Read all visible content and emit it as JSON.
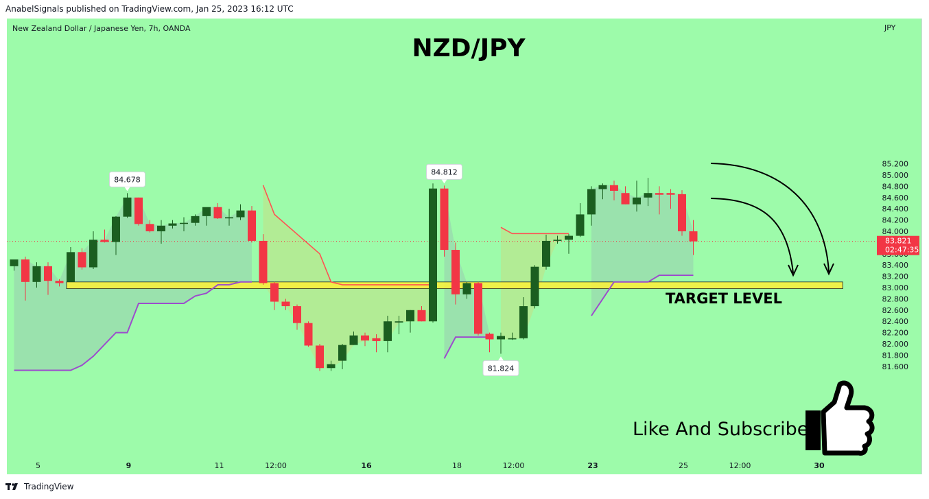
{
  "header": {
    "published": "AnabelSignals published on TradingView.com, Jan 25, 2023 16:12 UTC"
  },
  "symbol": {
    "description": "New Zealand Dollar / Japanese Yen, 7h, OANDA",
    "currency": "JPY"
  },
  "footer": {
    "brand": "TradingView",
    "logo_icon": "tradingview-logo-icon"
  },
  "colors": {
    "background": "#9dfbaa",
    "up": "#1b5e20",
    "down": "#f23645",
    "target_zone": "#f9ef3b",
    "support_line": "#9c4dcc",
    "resistance_line": "#ff5252"
  },
  "chart_data": {
    "type": "candlestick",
    "title": "NZD/JPY",
    "ylim": [
      81.5,
      85.3
    ],
    "y_ticks": [
      "85.200",
      "85.000",
      "84.800",
      "84.600",
      "84.400",
      "84.200",
      "84.000",
      "83.800",
      "83.600",
      "83.400",
      "83.200",
      "83.000",
      "82.800",
      "82.600",
      "82.400",
      "82.200",
      "82.000",
      "81.800",
      "81.600"
    ],
    "x_ticks": [
      {
        "label": "5",
        "bar": 2.0,
        "bold": false
      },
      {
        "label": "9",
        "bar": 10.0,
        "bold": true
      },
      {
        "label": "11",
        "bar": 18.0,
        "bold": false
      },
      {
        "label": "12:00",
        "bar": 23.0,
        "bold": false
      },
      {
        "label": "16",
        "bar": 31.0,
        "bold": true
      },
      {
        "label": "18",
        "bar": 39.0,
        "bold": false
      },
      {
        "label": "12:00",
        "bar": 44.0,
        "bold": false
      },
      {
        "label": "23",
        "bar": 51.0,
        "bold": true
      },
      {
        "label": "25",
        "bar": 59.0,
        "bold": false
      },
      {
        "label": "12:00",
        "bar": 64.0,
        "bold": false
      },
      {
        "label": "30",
        "bar": 71.0,
        "bold": true
      }
    ],
    "candles": [
      {
        "o": 83.38,
        "h": 83.5,
        "l": 83.3,
        "c": 83.5
      },
      {
        "o": 83.5,
        "h": 83.55,
        "l": 82.77,
        "c": 83.1
      },
      {
        "o": 83.1,
        "h": 83.45,
        "l": 83.0,
        "c": 83.38
      },
      {
        "o": 83.38,
        "h": 83.45,
        "l": 82.87,
        "c": 83.12
      },
      {
        "o": 83.12,
        "h": 83.15,
        "l": 83.02,
        "c": 83.08
      },
      {
        "o": 83.1,
        "h": 83.72,
        "l": 83.1,
        "c": 83.63
      },
      {
        "o": 83.63,
        "h": 83.7,
        "l": 83.32,
        "c": 83.36
      },
      {
        "o": 83.36,
        "h": 84.0,
        "l": 83.33,
        "c": 83.85
      },
      {
        "o": 83.85,
        "h": 84.03,
        "l": 83.8,
        "c": 83.81
      },
      {
        "o": 83.81,
        "h": 84.27,
        "l": 83.58,
        "c": 84.26
      },
      {
        "o": 84.26,
        "h": 84.678,
        "l": 84.24,
        "c": 84.6
      },
      {
        "o": 84.6,
        "h": 84.6,
        "l": 84.1,
        "c": 84.13
      },
      {
        "o": 84.13,
        "h": 84.2,
        "l": 83.98,
        "c": 84.0
      },
      {
        "o": 84.0,
        "h": 84.2,
        "l": 83.78,
        "c": 84.1
      },
      {
        "o": 84.1,
        "h": 84.2,
        "l": 84.05,
        "c": 84.14
      },
      {
        "o": 84.14,
        "h": 84.25,
        "l": 84.0,
        "c": 84.15
      },
      {
        "o": 84.15,
        "h": 84.3,
        "l": 84.1,
        "c": 84.27
      },
      {
        "o": 84.27,
        "h": 84.42,
        "l": 84.1,
        "c": 84.43
      },
      {
        "o": 84.43,
        "h": 84.5,
        "l": 84.22,
        "c": 84.23
      },
      {
        "o": 84.23,
        "h": 84.4,
        "l": 84.1,
        "c": 84.25
      },
      {
        "o": 84.25,
        "h": 84.48,
        "l": 84.2,
        "c": 84.37
      },
      {
        "o": 84.37,
        "h": 84.45,
        "l": 83.8,
        "c": 83.83
      },
      {
        "o": 83.83,
        "h": 83.95,
        "l": 83.05,
        "c": 83.08
      },
      {
        "o": 83.08,
        "h": 83.1,
        "l": 82.6,
        "c": 82.75
      },
      {
        "o": 82.75,
        "h": 82.8,
        "l": 82.6,
        "c": 82.67
      },
      {
        "o": 82.67,
        "h": 82.7,
        "l": 82.25,
        "c": 82.37
      },
      {
        "o": 82.37,
        "h": 82.4,
        "l": 81.95,
        "c": 81.97
      },
      {
        "o": 81.97,
        "h": 82.0,
        "l": 81.52,
        "c": 81.57
      },
      {
        "o": 81.57,
        "h": 81.7,
        "l": 81.52,
        "c": 81.64
      },
      {
        "o": 81.7,
        "h": 82.0,
        "l": 81.55,
        "c": 81.98
      },
      {
        "o": 81.98,
        "h": 82.22,
        "l": 81.98,
        "c": 82.15
      },
      {
        "o": 82.15,
        "h": 82.2,
        "l": 81.96,
        "c": 82.06
      },
      {
        "o": 82.1,
        "h": 82.17,
        "l": 81.85,
        "c": 82.05
      },
      {
        "o": 82.05,
        "h": 82.5,
        "l": 81.85,
        "c": 82.4
      },
      {
        "o": 82.38,
        "h": 82.5,
        "l": 82.17,
        "c": 82.4
      },
      {
        "o": 82.4,
        "h": 82.6,
        "l": 82.2,
        "c": 82.6
      },
      {
        "o": 82.6,
        "h": 82.67,
        "l": 82.4,
        "c": 82.4
      },
      {
        "o": 82.4,
        "h": 84.85,
        "l": 82.38,
        "c": 84.76
      },
      {
        "o": 84.76,
        "h": 84.812,
        "l": 83.55,
        "c": 83.67
      },
      {
        "o": 83.67,
        "h": 83.8,
        "l": 82.7,
        "c": 82.88
      },
      {
        "o": 82.88,
        "h": 83.1,
        "l": 82.8,
        "c": 83.08
      },
      {
        "o": 83.08,
        "h": 83.1,
        "l": 82.15,
        "c": 82.18
      },
      {
        "o": 82.18,
        "h": 82.2,
        "l": 81.85,
        "c": 82.08
      },
      {
        "o": 82.08,
        "h": 82.2,
        "l": 81.824,
        "c": 82.14
      },
      {
        "o": 82.08,
        "h": 82.2,
        "l": 82.07,
        "c": 82.1
      },
      {
        "o": 82.1,
        "h": 82.83,
        "l": 82.08,
        "c": 82.67
      },
      {
        "o": 82.67,
        "h": 83.4,
        "l": 82.63,
        "c": 83.37
      },
      {
        "o": 83.37,
        "h": 83.94,
        "l": 83.32,
        "c": 83.83
      },
      {
        "o": 83.83,
        "h": 83.92,
        "l": 83.78,
        "c": 83.85
      },
      {
        "o": 83.85,
        "h": 83.95,
        "l": 83.6,
        "c": 83.92
      },
      {
        "o": 83.92,
        "h": 84.5,
        "l": 83.9,
        "c": 84.3
      },
      {
        "o": 84.3,
        "h": 84.8,
        "l": 84.1,
        "c": 84.75
      },
      {
        "o": 84.75,
        "h": 84.85,
        "l": 84.57,
        "c": 84.82
      },
      {
        "o": 84.82,
        "h": 84.9,
        "l": 84.55,
        "c": 84.72
      },
      {
        "o": 84.68,
        "h": 84.8,
        "l": 84.48,
        "c": 84.48
      },
      {
        "o": 84.48,
        "h": 84.9,
        "l": 84.35,
        "c": 84.6
      },
      {
        "o": 84.6,
        "h": 84.95,
        "l": 84.45,
        "c": 84.68
      },
      {
        "o": 84.68,
        "h": 84.8,
        "l": 84.3,
        "c": 84.65
      },
      {
        "o": 84.68,
        "h": 84.75,
        "l": 84.4,
        "c": 84.65
      },
      {
        "o": 84.66,
        "h": 84.73,
        "l": 83.92,
        "c": 84.0
      },
      {
        "o": 84.0,
        "h": 84.2,
        "l": 83.58,
        "c": 83.821
      }
    ],
    "support_line": [
      [
        0,
        81.53
      ],
      [
        5,
        81.53
      ],
      [
        6,
        81.62
      ],
      [
        7,
        81.78
      ],
      [
        9,
        82.2
      ],
      [
        10,
        82.2
      ],
      [
        11,
        82.72
      ],
      [
        15,
        82.72
      ],
      [
        16,
        82.85
      ],
      [
        17,
        82.9
      ],
      [
        18,
        83.05
      ],
      [
        19,
        83.05
      ],
      [
        20,
        83.1
      ],
      [
        21,
        83.1
      ],
      null,
      [
        38,
        81.74
      ],
      [
        39,
        82.12
      ],
      [
        42,
        82.12
      ],
      null,
      [
        51,
        82.5
      ],
      [
        52,
        82.8
      ],
      [
        53,
        83.1
      ],
      [
        56,
        83.1
      ],
      [
        57,
        83.22
      ],
      [
        60,
        83.22
      ]
    ],
    "resistance_line": [
      [
        22,
        84.82
      ],
      [
        23,
        84.3
      ],
      [
        27,
        83.6
      ],
      [
        28,
        83.1
      ],
      [
        29,
        83.05
      ],
      [
        37,
        83.05
      ],
      null,
      [
        43,
        84.07
      ],
      [
        44,
        83.96
      ],
      [
        49,
        83.96
      ]
    ],
    "target_zone": {
      "from_bar": 5,
      "to_bar": 73.2,
      "low": 82.98,
      "high": 83.1
    },
    "annotations": {
      "high_label_1": {
        "text": "84.678",
        "bar": 10,
        "price": 84.678
      },
      "high_label_2": {
        "text": "84.812",
        "bar": 38,
        "price": 84.812
      },
      "low_label": {
        "text": "81.824",
        "bar": 43,
        "price": 81.824
      },
      "target_label": "TARGET LEVEL",
      "call_to_action": "Like And Subscribe"
    },
    "last_price": {
      "value": "83.821",
      "countdown": "02:47:35"
    }
  }
}
